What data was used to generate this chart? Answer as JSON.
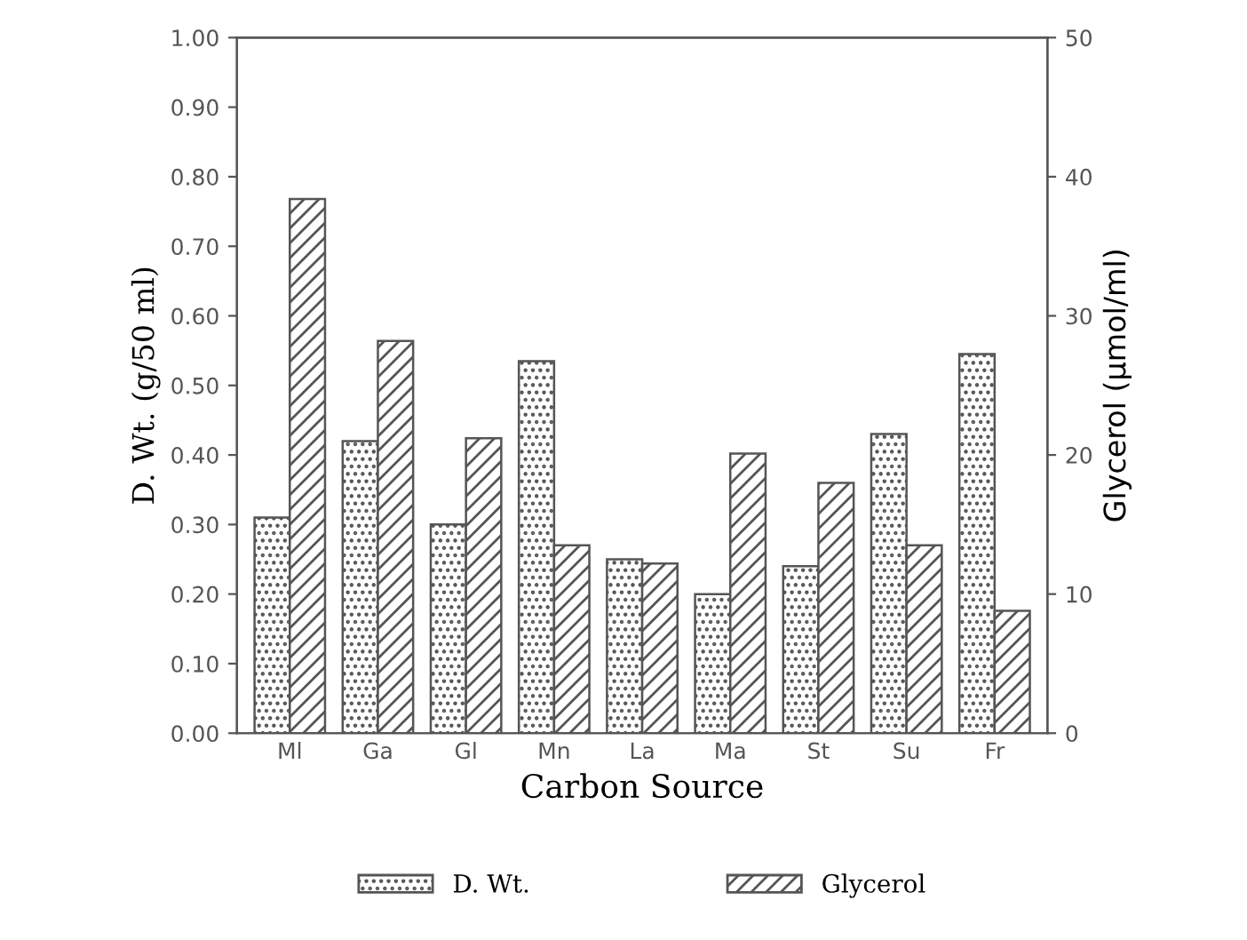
{
  "chart_data": {
    "type": "bar",
    "xlabel": "Carbon Source",
    "ylabel": "D. Wt. (g/50 ml)",
    "y2label": "Glycerol (µmol/ml)",
    "categories": [
      "Ml",
      "Ga",
      "Gl",
      "Mn",
      "La",
      "Ma",
      "St",
      "Su",
      "Fr"
    ],
    "series": [
      {
        "name": "D. Wt.",
        "color": "#555555",
        "values": [
          0.31,
          0.42,
          0.3,
          0.535,
          0.25,
          0.2,
          0.24,
          0.43,
          0.545
        ]
      },
      {
        "name": "Glycerol",
        "color": "#555555",
        "axis": "y2",
        "values": [
          38.4,
          28.2,
          21.2,
          13.5,
          12.2,
          20.1,
          18.0,
          13.5,
          8.8
        ]
      }
    ],
    "ylim": [
      0,
      1.0
    ],
    "yticks": [
      {
        "value": 0,
        "label": "0.00"
      },
      {
        "value": 0.1,
        "label": "0.10"
      },
      {
        "value": 0.2,
        "label": "0.20"
      },
      {
        "value": 0.3,
        "label": "0.30"
      },
      {
        "value": 0.4,
        "label": "0.40"
      },
      {
        "value": 0.5,
        "label": "0.50"
      },
      {
        "value": 0.6,
        "label": "0.60"
      },
      {
        "value": 0.7,
        "label": "0.70"
      },
      {
        "value": 0.8,
        "label": "0.80"
      },
      {
        "value": 0.9,
        "label": "0.90"
      },
      {
        "value": 1.0,
        "label": "1.00"
      }
    ],
    "y2lim": [
      0,
      50
    ],
    "y2ticks": [
      0,
      10,
      20,
      30,
      40,
      50
    ],
    "grid": false,
    "legend": "bottom"
  }
}
